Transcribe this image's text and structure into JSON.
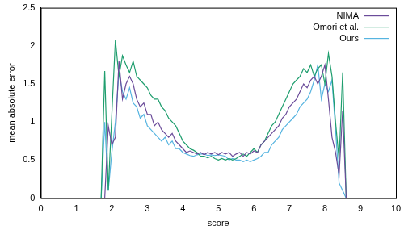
{
  "chart_data": {
    "type": "line",
    "x_label": "score",
    "y_label": "mean absolute error",
    "x": [
      0,
      1.7,
      1.8,
      1.9,
      2.0,
      2.1,
      2.2,
      2.3,
      2.4,
      2.5,
      2.6,
      2.7,
      2.8,
      2.9,
      3.0,
      3.1,
      3.2,
      3.3,
      3.4,
      3.5,
      3.6,
      3.7,
      3.8,
      3.9,
      4.0,
      4.1,
      4.2,
      4.3,
      4.4,
      4.5,
      4.6,
      4.7,
      4.8,
      4.9,
      5.0,
      5.1,
      5.2,
      5.3,
      5.4,
      5.5,
      5.6,
      5.7,
      5.8,
      5.9,
      6.0,
      6.1,
      6.2,
      6.3,
      6.4,
      6.5,
      6.6,
      6.7,
      6.8,
      6.9,
      7.0,
      7.1,
      7.2,
      7.3,
      7.4,
      7.5,
      7.6,
      7.7,
      7.8,
      7.9,
      8.0,
      8.1,
      8.2,
      8.3,
      8.4,
      8.5,
      8.6,
      10
    ],
    "series": [
      {
        "name": "NIMA",
        "color": "#6b4c9a",
        "values": [
          0,
          0,
          0,
          0.95,
          0.7,
          0.8,
          1.8,
          1.3,
          1.5,
          1.6,
          1.5,
          1.3,
          1.2,
          1.25,
          1.1,
          1.1,
          0.95,
          1.0,
          0.9,
          0.85,
          0.8,
          0.85,
          0.75,
          0.7,
          0.65,
          0.6,
          0.62,
          0.6,
          0.58,
          0.6,
          0.57,
          0.6,
          0.58,
          0.6,
          0.57,
          0.6,
          0.58,
          0.6,
          0.55,
          0.58,
          0.6,
          0.55,
          0.6,
          0.58,
          0.62,
          0.6,
          0.7,
          0.75,
          0.8,
          0.85,
          0.9,
          0.95,
          1.05,
          1.1,
          1.2,
          1.25,
          1.3,
          1.4,
          1.5,
          1.45,
          1.55,
          1.6,
          1.5,
          1.6,
          1.75,
          1.3,
          0.8,
          0.6,
          0.3,
          1.15,
          0,
          0
        ]
      },
      {
        "name": "Omori et al.",
        "color": "#1f9e6e",
        "values": [
          0,
          0,
          1.67,
          0.1,
          1.1,
          2.08,
          1.6,
          1.87,
          1.75,
          1.65,
          1.8,
          1.6,
          1.55,
          1.5,
          1.45,
          1.35,
          1.3,
          1.3,
          1.2,
          1.15,
          1.05,
          1.0,
          0.95,
          0.85,
          0.75,
          0.7,
          0.65,
          0.63,
          0.6,
          0.55,
          0.55,
          0.53,
          0.55,
          0.52,
          0.5,
          0.52,
          0.5,
          0.52,
          0.5,
          0.52,
          0.55,
          0.58,
          0.55,
          0.6,
          0.65,
          0.6,
          0.7,
          0.75,
          0.85,
          0.95,
          1.0,
          1.1,
          1.2,
          1.3,
          1.4,
          1.5,
          1.55,
          1.6,
          1.7,
          1.65,
          1.75,
          1.6,
          1.7,
          1.75,
          1.5,
          1.9,
          1.6,
          1.0,
          0.5,
          1.65,
          0,
          0
        ]
      },
      {
        "name": "Ours",
        "color": "#56b4e0",
        "values": [
          0,
          0,
          1.0,
          0.1,
          0.6,
          1.0,
          1.65,
          1.4,
          1.3,
          1.45,
          1.25,
          1.2,
          1.05,
          1.1,
          0.95,
          0.9,
          0.85,
          0.8,
          0.75,
          0.8,
          0.7,
          0.75,
          0.65,
          0.65,
          0.6,
          0.58,
          0.56,
          0.55,
          0.57,
          0.58,
          0.58,
          0.56,
          0.57,
          0.56,
          0.57,
          0.56,
          0.55,
          0.5,
          0.52,
          0.5,
          0.5,
          0.48,
          0.5,
          0.48,
          0.5,
          0.52,
          0.55,
          0.6,
          0.6,
          0.7,
          0.75,
          0.8,
          0.9,
          0.95,
          1.0,
          1.05,
          1.1,
          1.2,
          1.25,
          1.3,
          1.4,
          1.55,
          1.75,
          1.3,
          1.5,
          1.4,
          1.55,
          0.9,
          0.2,
          0.1,
          0,
          0
        ]
      }
    ],
    "xlim": [
      0,
      10
    ],
    "xticks": [
      0,
      1,
      2,
      3,
      4,
      5,
      6,
      7,
      8,
      9,
      10
    ],
    "ylim": [
      0,
      2.5
    ],
    "yticks": [
      0,
      0.5,
      1,
      1.5,
      2,
      2.5
    ],
    "grid": false,
    "legend": "top right"
  }
}
